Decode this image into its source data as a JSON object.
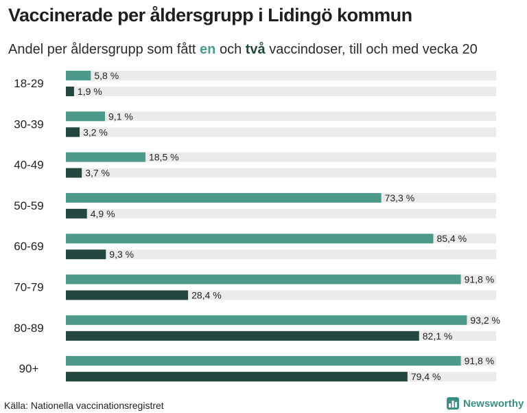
{
  "title": "Vaccinerade per åldersgrupp i Lidingö kommun",
  "subtitle": {
    "before": "Andel per åldersgrupp som fått ",
    "one": "en",
    "middle": " och ",
    "two": "två",
    "after": " vaccindoser, till och med vecka 20"
  },
  "source": "Källa: Nationella vaccinationsregistret",
  "brand": "Newsworthy",
  "colors": {
    "one_dose": "#4d9a8a",
    "two_doses": "#24483f",
    "track": "#ebebeb",
    "brand": "#3c8f84"
  },
  "chart_data": {
    "type": "bar",
    "orientation": "horizontal",
    "categories": [
      "18-29",
      "30-39",
      "40-49",
      "50-59",
      "60-69",
      "70-79",
      "80-89",
      "90+"
    ],
    "series": [
      {
        "values": [
          5.8,
          9.1,
          18.5,
          73.3,
          85.4,
          91.8,
          93.2,
          91.8
        ],
        "labels": [
          "5,8 %",
          "9,1 %",
          "18,5 %",
          "73,3 %",
          "85,4 %",
          "91,8 %",
          "93,2 %",
          "91,8 %"
        ]
      },
      {
        "values": [
          1.9,
          3.2,
          3.7,
          4.9,
          9.3,
          28.4,
          82.1,
          79.4
        ],
        "labels": [
          "1,9 %",
          "3,2 %",
          "3,7 %",
          "4,9 %",
          "9,3 %",
          "28,4 %",
          "82,1 %",
          "79,4 %"
        ]
      }
    ],
    "xlim": [
      0,
      100
    ],
    "grid": false,
    "legend": "none"
  }
}
